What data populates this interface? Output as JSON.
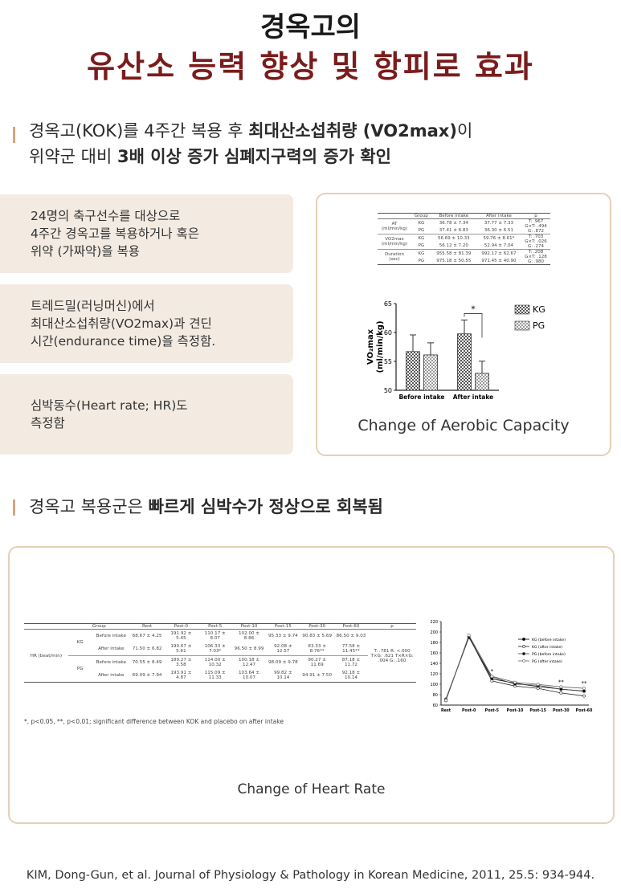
{
  "header": {
    "title_line1": "경옥고의",
    "title_line2": "유산소 능력 향상 및 항피로 효과"
  },
  "section1": {
    "heading_lines": [
      [
        {
          "text": "경옥고(KOK)를 4주간 복용 후 ",
          "bold": false
        },
        {
          "text": "최대산소섭취량 (VO2max)",
          "bold": true
        },
        {
          "text": "이",
          "bold": false
        }
      ],
      [
        {
          "text": "위약군 대비 ",
          "bold": false
        },
        {
          "text": "3배 이상 증가 심폐지구력의 증가 확인",
          "bold": true
        }
      ]
    ],
    "boxes": [
      {
        "lines": [
          "24명의 축구선수를 대상으로",
          "4주간 경옥고를 복용하거나 혹은",
          "위약 (가짜약)을 복용"
        ]
      },
      {
        "lines": [
          "트레드밀(러닝머신)에서",
          "최대산소섭취량(VO2max)과 견딘",
          "시간(endurance time)을 측정함."
        ]
      },
      {
        "lines": [
          "심박동수(Heart rate; HR)도",
          "측정함"
        ]
      }
    ],
    "table": {
      "header": [
        "Group",
        "Before intake",
        "After intake",
        "p"
      ],
      "blocks": [
        {
          "label": "AT (ml/min/kg)",
          "rows": [
            [
              "KG",
              "36.78 ± 7.34",
              "37.77 ± 7.33"
            ],
            [
              "PG",
              "37.41 ± 6.83",
              "36.30 ± 6.51"
            ]
          ],
          "p": "T: .967 G×T: .494 G: .872"
        },
        {
          "label": "VO2max (ml/min/kg)",
          "rows": [
            [
              "KG",
              "56.69 ± 10.33",
              "59.76 ± 8.61*"
            ],
            [
              "PG",
              "56.12 ± 7.20",
              "52.94 ± 7.04"
            ]
          ],
          "p": "T: .703 G×T: .026 G: .274"
        },
        {
          "label": "Duration (sec)",
          "rows": [
            [
              "KG",
              "955.58 ± 81.39",
              "992.17 ± 62.67"
            ],
            [
              "PG",
              "975.18 ± 50.55",
              "971.45 ± 40.90"
            ]
          ],
          "p": "T: .208 G×T: .128 G: .980"
        }
      ]
    },
    "caption": "Change of Aerobic Capacity"
  },
  "section2": {
    "heading_lines": [
      [
        {
          "text": "경옥고 복용군은 ",
          "bold": false
        },
        {
          "text": "빠르게 심박수가 정상으로 회복됨",
          "bold": true
        }
      ]
    ],
    "table": {
      "header": [
        "Group",
        "Rest",
        "Post-0",
        "Post-5",
        "Post-10",
        "Post-15",
        "Post-30",
        "Post-60",
        "p"
      ],
      "row_label": "HR (beat/min)",
      "groups": [
        {
          "name": "KG",
          "rows": [
            {
              "label": "Before intake",
              "cells": [
                "68.67 ± 4.25",
                "191.92 ± 5.45",
                "110.17 ± 8.07",
                "102.00 ± 8.86",
                "95.33 ± 9.74",
                "90.83 ± 5.69",
                "86.50 ± 9.03"
              ]
            },
            {
              "label": "After intake",
              "cells": [
                "71.50 ± 6.82",
                "190.67 ± 5.61",
                "106.33 ± 7.03*",
                "96.50 ± 8.99",
                "92.08 ± 12.57",
                "83.33 ± 8.76**",
                "77.58 ± 11.45**"
              ]
            }
          ]
        },
        {
          "name": "PG",
          "rows": [
            {
              "label": "Before intake",
              "cells": [
                "70.55 ± 8.49",
                "189.27 ± 3.58",
                "114.00 ± 10.32",
                "100.18 ± 12.47",
                "98.09 ± 9.78",
                "90.27 ± 11.69",
                "87.18 ± 11.72"
              ]
            },
            {
              "label": "After intake",
              "cells": [
                "69.09 ± 7.94",
                "193.91 ± 4.87",
                "115.09 ± 11.33",
                "103.64 ± 10.07",
                "99.82 ± 10.14",
                "94.91 ± 7.50",
                "92.18 ± 10.14"
              ]
            }
          ]
        }
      ],
      "p": "T: .781 R: <.000 T×G: .621 T×R×G: .004 G: .160"
    },
    "footnote": "*, p<0.05, **, p<0.01; significant difference between KOK and placebo on after intake",
    "caption": "Change of Heart Rate"
  },
  "chart_data": [
    {
      "type": "bar",
      "categories": [
        "Before intake",
        "After intake"
      ],
      "series": [
        {
          "name": "KG",
          "color": "#555555",
          "values": [
            56.69,
            59.76
          ],
          "errors": [
            2.9,
            2.4
          ]
        },
        {
          "name": "PG",
          "color": "#9a9a9a",
          "values": [
            56.12,
            52.94
          ],
          "errors": [
            2.1,
            2.1
          ]
        }
      ],
      "y_label_lines": [
        "VO₂max",
        "(ml/min/kg)"
      ],
      "ylim": [
        50,
        65
      ],
      "yticks": [
        50,
        55,
        60,
        65
      ],
      "annotations": [
        {
          "text": "*",
          "category": "After intake"
        }
      ],
      "legend": "right"
    },
    {
      "type": "line",
      "categories": [
        "Rest",
        "Post-0",
        "Post-5",
        "Post-10",
        "Post-15",
        "Post-30",
        "Post-60"
      ],
      "series": [
        {
          "name": "KG (before intake)",
          "color": "#000000",
          "values": [
            68.67,
            191.92,
            110.17,
            102.0,
            95.33,
            90.83,
            86.5
          ]
        },
        {
          "name": "KG (after intake)",
          "color": "#222222",
          "values": [
            71.5,
            190.67,
            106.33,
            96.5,
            92.08,
            83.33,
            77.58
          ]
        },
        {
          "name": "PG (before intake)",
          "color": "#444444",
          "values": [
            70.55,
            189.27,
            114.0,
            100.18,
            98.09,
            90.27,
            87.18
          ]
        },
        {
          "name": "PG (after intake)",
          "color": "#666666",
          "values": [
            69.09,
            193.91,
            115.09,
            103.64,
            99.82,
            94.91,
            92.18
          ]
        }
      ],
      "ylim": [
        60,
        220
      ],
      "yticks": [
        60,
        80,
        100,
        120,
        140,
        160,
        180,
        200,
        220
      ],
      "annotations": [
        {
          "text": "*",
          "category": "Post-5"
        },
        {
          "text": "**",
          "category": "Post-30"
        },
        {
          "text": "**",
          "category": "Post-60"
        }
      ],
      "legend": "upper right"
    }
  ],
  "citation": "KIM, Dong-Gun, et al. Journal of Physiology & Pathology in Korean Medicine, 2011, 25.5: 934-944."
}
